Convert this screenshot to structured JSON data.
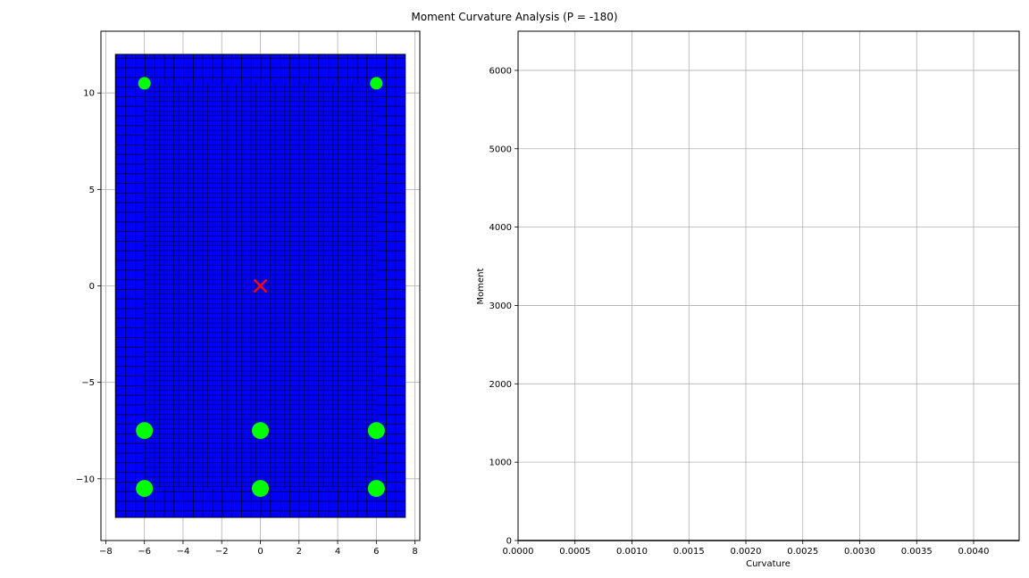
{
  "figure": {
    "title": "Moment Curvature Analysis (P = -180)"
  },
  "chart_data": [
    {
      "type": "scatter",
      "title": "",
      "xlabel": "",
      "ylabel": "",
      "xlim": [
        -8.25,
        8.25
      ],
      "ylim": [
        -13.2,
        13.2
      ],
      "xticks": [
        -8,
        -6,
        -4,
        -2,
        0,
        2,
        4,
        6,
        8
      ],
      "yticks": [
        -10,
        -5,
        0,
        5,
        10
      ],
      "grid": true,
      "section": {
        "x_range": [
          -7.5,
          7.5
        ],
        "y_range": [
          -12,
          12
        ],
        "core_x_range": [
          -6,
          6
        ],
        "core_y_range": [
          -10.5,
          10.5
        ],
        "fiber_spacing_cover": 0.5,
        "fiber_spacing_core": 0.25,
        "fill_color": "#0000ff",
        "edge_color": "#000000"
      },
      "rebars": {
        "color": "#00ff00",
        "points": [
          {
            "x": -6,
            "y": 10.5,
            "size": "small"
          },
          {
            "x": 6,
            "y": 10.5,
            "size": "small"
          },
          {
            "x": -6,
            "y": -7.5,
            "size": "large"
          },
          {
            "x": 0,
            "y": -7.5,
            "size": "large"
          },
          {
            "x": 6,
            "y": -7.5,
            "size": "large"
          },
          {
            "x": -6,
            "y": -10.5,
            "size": "large"
          },
          {
            "x": 0,
            "y": -10.5,
            "size": "large"
          },
          {
            "x": 6,
            "y": -10.5,
            "size": "large"
          }
        ]
      },
      "centroid": {
        "x": 0,
        "y": 0,
        "marker": "x",
        "color": "#ff0000"
      }
    },
    {
      "type": "line",
      "title": "",
      "xlabel": "Curvature",
      "ylabel": "Moment",
      "xlim": [
        0,
        0.0044
      ],
      "ylim": [
        0,
        6500
      ],
      "xticks": [
        0.0,
        0.0005,
        0.001,
        0.0015,
        0.002,
        0.0025,
        0.003,
        0.0035,
        0.004
      ],
      "xtick_labels": [
        "0.0000",
        "0.0005",
        "0.0010",
        "0.0015",
        "0.0020",
        "0.0025",
        "0.0030",
        "0.0035",
        "0.0040"
      ],
      "yticks": [
        0,
        1000,
        2000,
        3000,
        4000,
        5000,
        6000
      ],
      "grid": true,
      "series": [
        {
          "color": "#000000",
          "x": [
            0,
            0.0044
          ],
          "y": [
            0,
            0
          ]
        }
      ]
    }
  ]
}
